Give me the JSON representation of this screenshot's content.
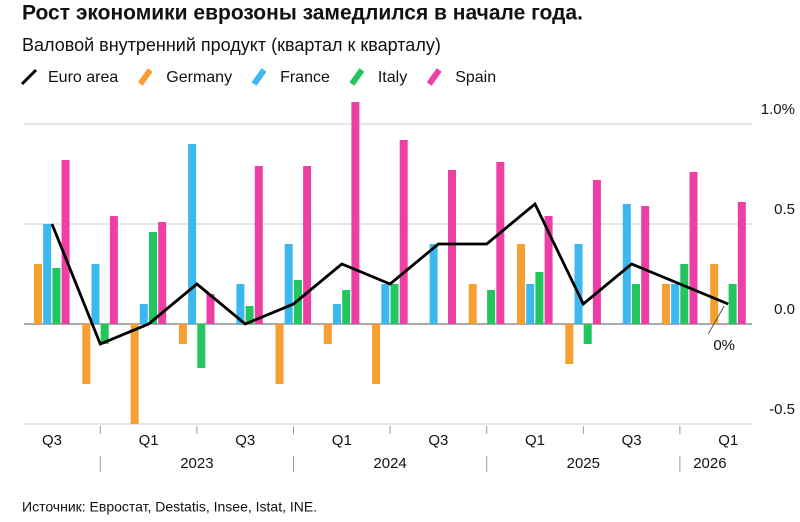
{
  "chart_data": {
    "type": "bar_line",
    "title": "Рост экономики еврозоны замедлился в начале года.",
    "subtitle": "Валовой внутренний продукт (квартал к кварталу)",
    "categories": [
      "Q3",
      null,
      "Q1",
      null,
      "Q3",
      null,
      "Q1",
      null,
      "Q3",
      null,
      "Q1",
      null,
      "Q3",
      null,
      "Q1"
    ],
    "years": [
      "2023",
      "2024",
      "2025",
      "2026"
    ],
    "series": [
      {
        "name": "Euro area",
        "color": "#000000",
        "kind": "line",
        "values": [
          0.5,
          -0.1,
          0.0,
          0.2,
          0.0,
          0.1,
          0.3,
          0.2,
          0.4,
          0.4,
          0.6,
          0.1,
          0.3,
          0.2,
          0.1
        ]
      },
      {
        "name": "Germany",
        "color": "#f5a030",
        "kind": "bar",
        "values": [
          0.3,
          -0.3,
          -0.5,
          -0.1,
          0.0,
          -0.3,
          -0.1,
          -0.3,
          0.0,
          0.2,
          0.4,
          -0.2,
          0.0,
          0.2,
          0.3
        ]
      },
      {
        "name": "France",
        "color": "#3bb8ee",
        "kind": "bar",
        "values": [
          0.5,
          0.3,
          0.1,
          0.9,
          0.2,
          0.4,
          0.1,
          0.2,
          0.4,
          0.0,
          0.2,
          0.4,
          0.6,
          0.2,
          0.0
        ]
      },
      {
        "name": "Italy",
        "color": "#22c55e",
        "kind": "bar",
        "values": [
          0.28,
          -0.1,
          0.46,
          -0.22,
          0.09,
          0.22,
          0.17,
          0.2,
          0.0,
          0.17,
          0.26,
          -0.1,
          0.2,
          0.3,
          0.2
        ]
      },
      {
        "name": "Spain",
        "color": "#ee3fa4",
        "kind": "bar",
        "values": [
          0.82,
          0.54,
          0.51,
          0.15,
          0.79,
          0.79,
          1.11,
          0.92,
          0.77,
          0.81,
          0.54,
          0.72,
          0.59,
          0.76,
          0.61
        ]
      }
    ],
    "annotation": "0%",
    "ylim": [
      -0.51,
      1.12
    ],
    "yticks": [
      {
        "value": 1.0,
        "label": "1.0%"
      },
      {
        "value": 0.5,
        "label": "0.5"
      },
      {
        "value": 0,
        "label": "0.0"
      },
      {
        "value": -0.5,
        "label": "-0.5"
      }
    ],
    "grid": true,
    "source": "Источник: Евростат, Destatis, Insee, Istat, INE."
  }
}
